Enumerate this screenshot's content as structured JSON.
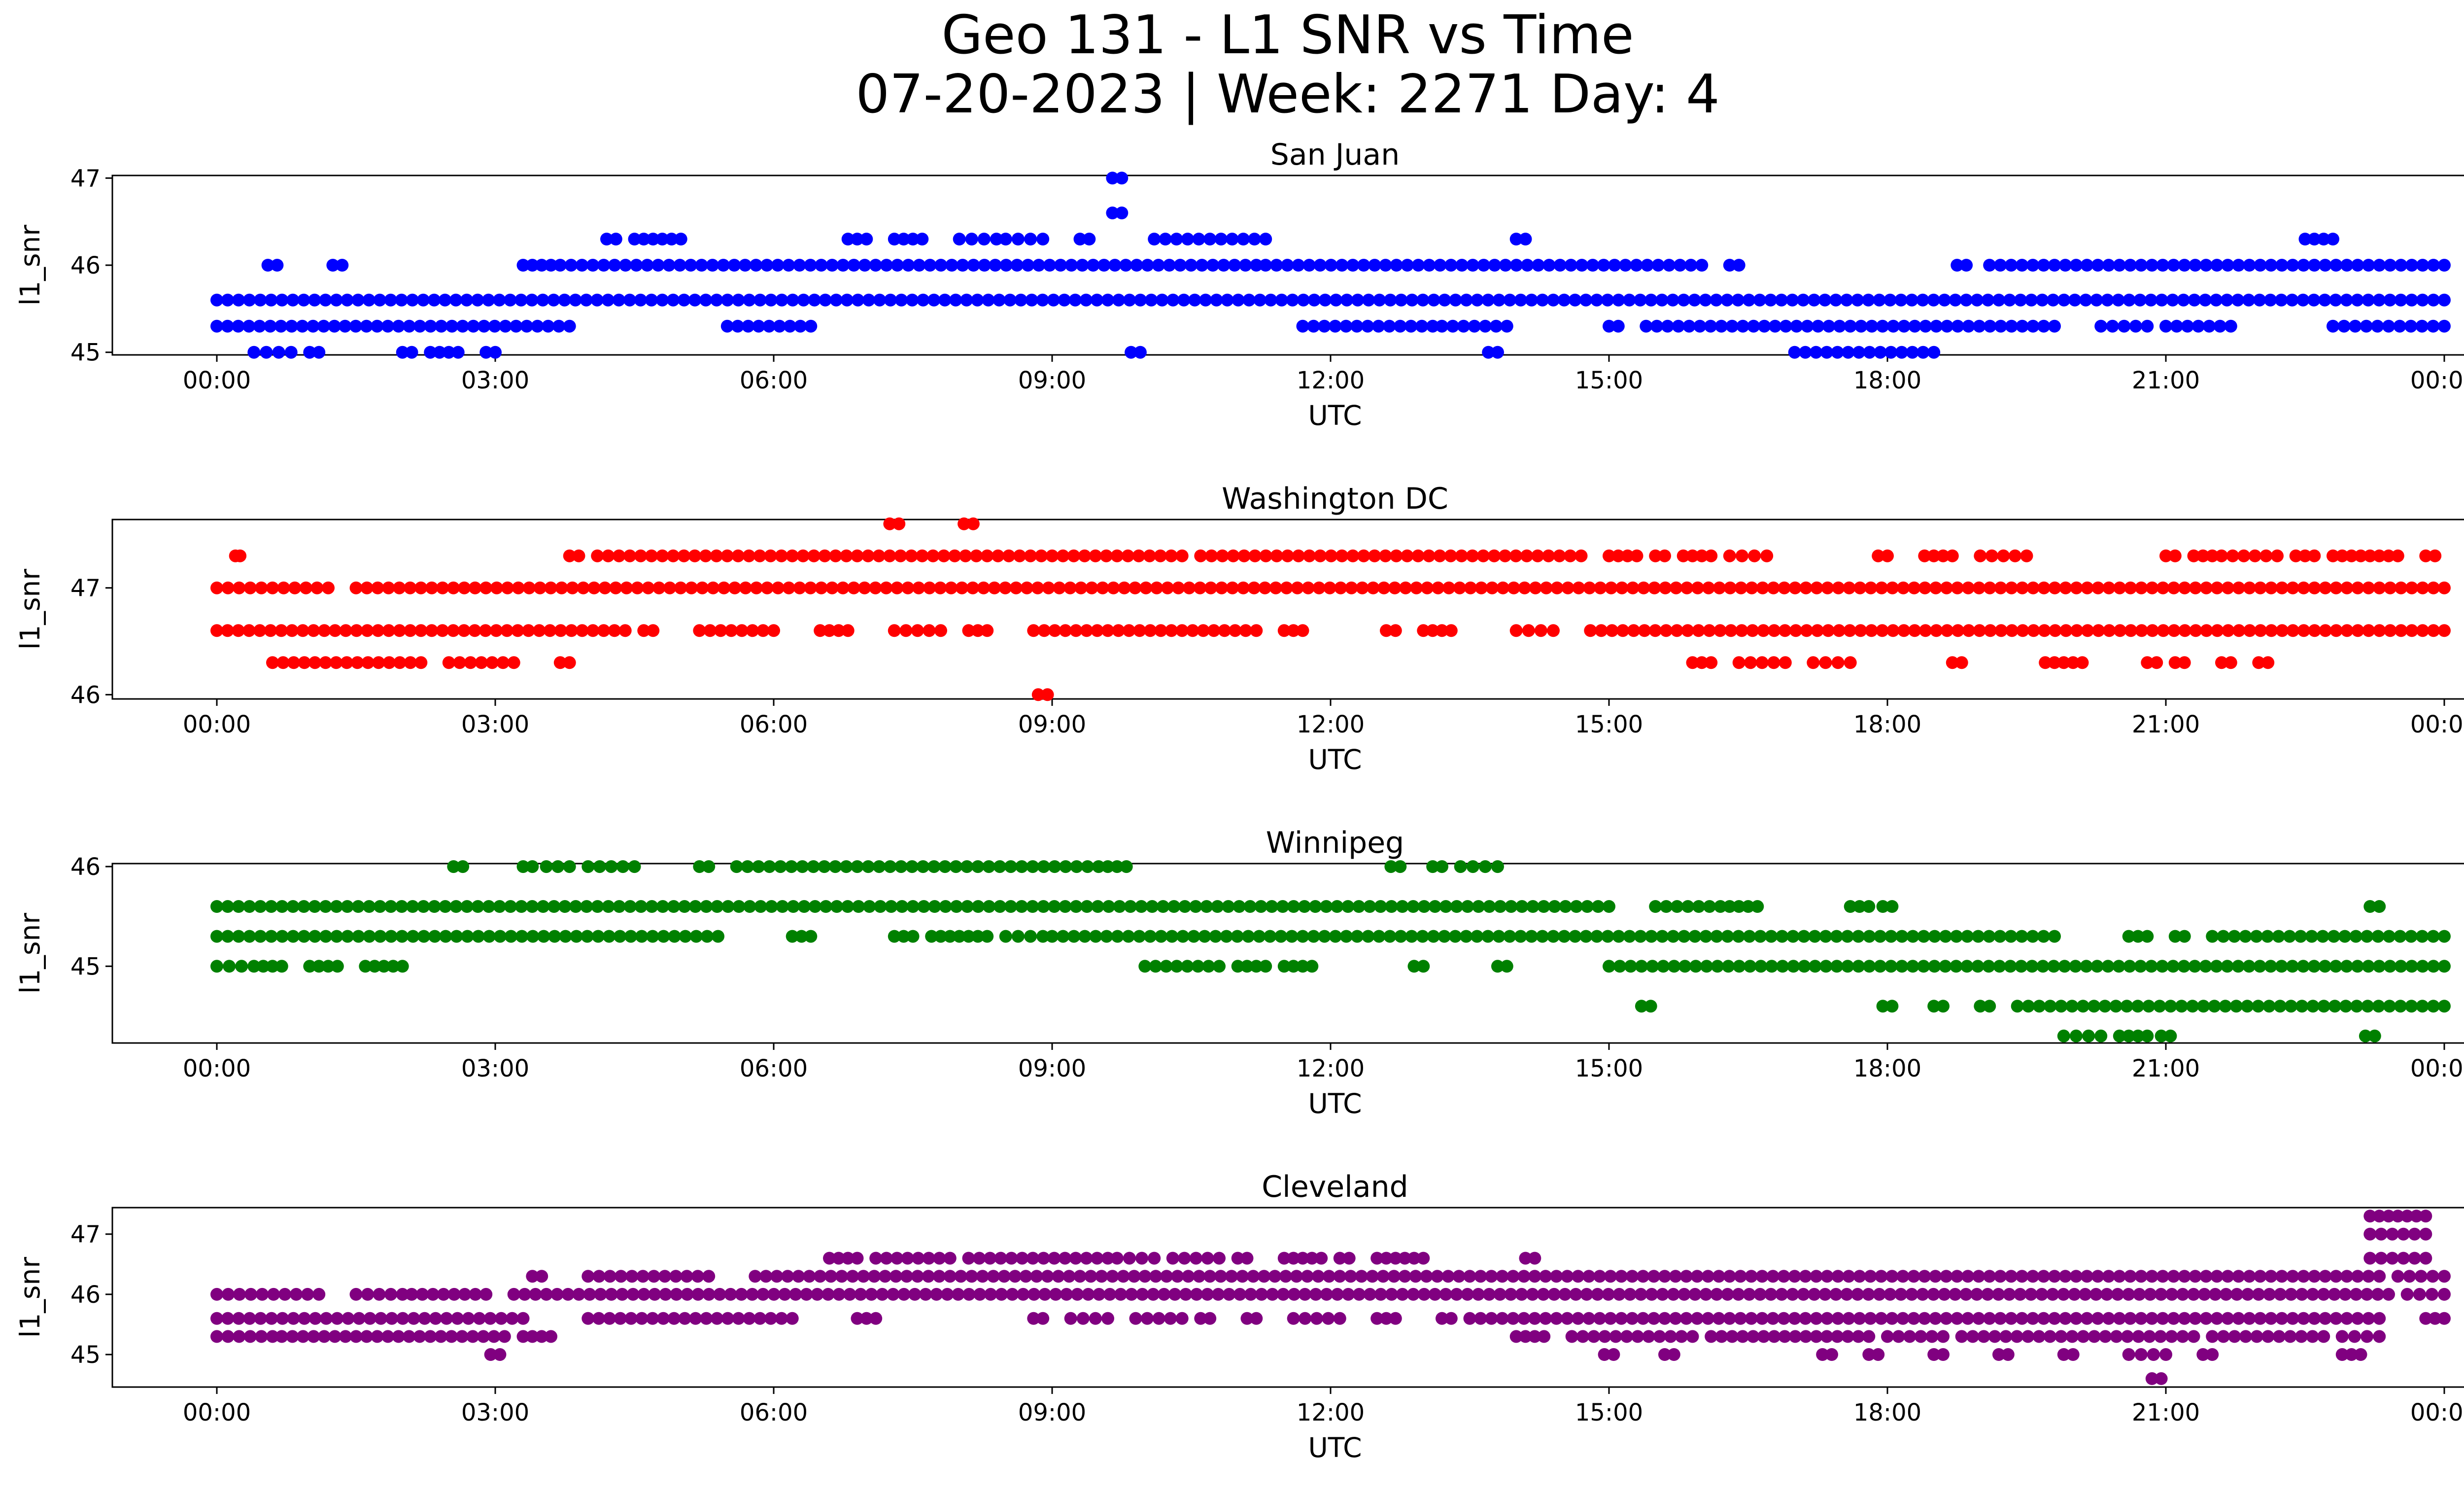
{
  "figure": {
    "title_line1": "Geo 131 - L1 SNR vs Time",
    "title_line2": "07-20-2023 | Week: 2271 Day: 4"
  },
  "chart_data": [
    {
      "type": "scatter",
      "title": "San Juan",
      "color": "#0000ff",
      "xlabel": "UTC",
      "ylabel": "l1_snr",
      "xlim": [
        "2023-07-20 00:00",
        "2023-07-21 00:00"
      ],
      "ylim": [
        44.97,
        47.03
      ],
      "xtick_labels": [
        "00:00",
        "03:00",
        "06:00",
        "09:00",
        "12:00",
        "15:00",
        "18:00",
        "21:00",
        "00:00"
      ],
      "ytick_values": [
        45,
        46,
        47
      ],
      "levels": [
        {
          "y": 45.6,
          "segments": [
            [
              0.0,
              24.0
            ]
          ]
        },
        {
          "y": 45.3,
          "segments": [
            [
              0.0,
              3.8
            ],
            [
              5.5,
              6.4
            ],
            [
              11.7,
              13.1
            ],
            [
              13.2,
              13.9
            ],
            [
              15.0,
              15.1
            ],
            [
              15.4,
              19.8
            ],
            [
              20.3,
              20.8
            ],
            [
              21.0,
              21.7
            ],
            [
              22.8,
              24.0
            ]
          ]
        },
        {
          "y": 46.0,
          "segments": [
            [
              0.55,
              0.65
            ],
            [
              1.25,
              1.35
            ],
            [
              3.3,
              3.6
            ],
            [
              3.7,
              11.2
            ],
            [
              11.3,
              16.0
            ],
            [
              16.3,
              16.4
            ],
            [
              18.75,
              18.85
            ],
            [
              19.1,
              24.0
            ]
          ]
        },
        {
          "y": 45.0,
          "segments": [
            [
              0.4,
              0.8
            ],
            [
              1.0,
              1.1
            ],
            [
              2.0,
              2.1
            ],
            [
              2.3,
              2.6
            ],
            [
              2.9,
              3.0
            ],
            [
              13.7,
              13.8
            ],
            [
              17.0,
              18.5
            ]
          ]
        },
        {
          "y": 46.3,
          "segments": [
            [
              4.2,
              4.3
            ],
            [
              4.5,
              4.8
            ],
            [
              4.9,
              5.0
            ],
            [
              6.8,
              7.0
            ],
            [
              7.3,
              7.6
            ],
            [
              8.0,
              8.4
            ],
            [
              8.5,
              8.9
            ],
            [
              9.3,
              9.4
            ],
            [
              10.1,
              11.3
            ],
            [
              14.0,
              14.1
            ],
            [
              22.5,
              22.8
            ]
          ]
        },
        {
          "y": 46.6,
          "segments": [
            [
              9.65,
              9.75
            ]
          ]
        },
        {
          "y": 47.0,
          "segments": [
            [
              9.65,
              9.75
            ]
          ]
        },
        {
          "y": 45.0,
          "segments": [
            [
              9.85,
              9.95
            ]
          ]
        }
      ]
    },
    {
      "type": "scatter",
      "title": "Washington DC",
      "color": "#ff0000",
      "xlabel": "UTC",
      "ylabel": "l1_snr",
      "xlim": [
        "2023-07-20 00:00",
        "2023-07-21 00:00"
      ],
      "ylim": [
        45.96,
        47.64
      ],
      "xtick_labels": [
        "00:00",
        "03:00",
        "06:00",
        "09:00",
        "12:00",
        "15:00",
        "18:00",
        "21:00",
        "00:00"
      ],
      "ytick_values": [
        46,
        47
      ],
      "levels": [
        {
          "y": 47.0,
          "segments": [
            [
              0.0,
              1.2
            ],
            [
              1.5,
              24.0
            ]
          ]
        },
        {
          "y": 46.6,
          "segments": [
            [
              0.0,
              4.4
            ],
            [
              4.6,
              4.7
            ],
            [
              5.2,
              6.0
            ],
            [
              6.5,
              6.8
            ],
            [
              7.3,
              7.8
            ],
            [
              8.1,
              8.3
            ],
            [
              8.8,
              11.2
            ],
            [
              11.5,
              11.7
            ],
            [
              12.6,
              12.7
            ],
            [
              13.0,
              13.3
            ],
            [
              14.0,
              14.4
            ],
            [
              14.8,
              24.0
            ]
          ]
        },
        {
          "y": 46.3,
          "segments": [
            [
              0.6,
              2.2
            ],
            [
              2.5,
              3.2
            ],
            [
              3.7,
              3.8
            ],
            [
              15.9,
              16.1
            ],
            [
              16.4,
              16.9
            ],
            [
              17.2,
              17.6
            ],
            [
              18.7,
              18.8
            ],
            [
              19.7,
              19.9
            ],
            [
              20.0,
              20.1
            ],
            [
              20.8,
              20.9
            ],
            [
              21.1,
              21.2
            ],
            [
              21.6,
              21.7
            ],
            [
              22.0,
              22.1
            ]
          ]
        },
        {
          "y": 47.3,
          "segments": [
            [
              0.2,
              0.25
            ],
            [
              3.8,
              3.9
            ],
            [
              4.1,
              10.4
            ],
            [
              10.6,
              14.7
            ],
            [
              15.0,
              15.3
            ],
            [
              15.5,
              15.6
            ],
            [
              15.8,
              16.1
            ],
            [
              16.3,
              16.7
            ],
            [
              17.9,
              18.0
            ],
            [
              18.4,
              18.7
            ],
            [
              19.0,
              19.5
            ],
            [
              21.0,
              21.1
            ],
            [
              21.3,
              21.5
            ],
            [
              21.6,
              22.2
            ],
            [
              22.4,
              22.6
            ],
            [
              22.8,
              23.1
            ],
            [
              23.2,
              23.5
            ],
            [
              23.8,
              23.9
            ]
          ]
        },
        {
          "y": 47.6,
          "segments": [
            [
              7.25,
              7.35
            ],
            [
              8.05,
              8.15
            ]
          ]
        },
        {
          "y": 46.0,
          "segments": [
            [
              8.85,
              8.95
            ]
          ]
        }
      ]
    },
    {
      "type": "scatter",
      "title": "Winnipeg",
      "color": "#008000",
      "xlabel": "UTC",
      "ylabel": "l1_snr",
      "xlim": [
        "2023-07-20 00:00",
        "2023-07-21 00:00"
      ],
      "ylim": [
        44.23,
        46.03
      ],
      "xtick_labels": [
        "00:00",
        "03:00",
        "06:00",
        "09:00",
        "12:00",
        "15:00",
        "18:00",
        "21:00",
        "00:00"
      ],
      "ytick_values": [
        45,
        46
      ],
      "levels": [
        {
          "y": 45.6,
          "segments": [
            [
              0.0,
              15.0
            ],
            [
              15.5,
              16.2
            ],
            [
              16.3,
              16.6
            ],
            [
              17.6,
              17.8
            ],
            [
              17.95,
              18.05
            ],
            [
              23.2,
              23.3
            ]
          ]
        },
        {
          "y": 45.3,
          "segments": [
            [
              0.0,
              5.4
            ],
            [
              6.2,
              6.4
            ],
            [
              7.3,
              7.5
            ],
            [
              7.7,
              7.9
            ],
            [
              8.0,
              8.3
            ],
            [
              8.5,
              8.9
            ],
            [
              9.0,
              19.8
            ],
            [
              20.6,
              20.8
            ],
            [
              21.1,
              21.2
            ],
            [
              21.5,
              24.0
            ]
          ]
        },
        {
          "y": 45.0,
          "segments": [
            [
              0.0,
              0.4
            ],
            [
              0.5,
              0.7
            ],
            [
              1.0,
              1.3
            ],
            [
              1.6,
              1.7
            ],
            [
              1.8,
              2.0
            ],
            [
              10.0,
              10.8
            ],
            [
              11.0,
              11.3
            ],
            [
              11.5,
              11.8
            ],
            [
              12.9,
              13.0
            ],
            [
              13.8,
              13.9
            ],
            [
              15.0,
              24.0
            ]
          ]
        },
        {
          "y": 46.0,
          "segments": [
            [
              2.55,
              2.65
            ],
            [
              3.3,
              3.4
            ],
            [
              3.55,
              3.8
            ],
            [
              4.0,
              4.5
            ],
            [
              5.2,
              5.3
            ],
            [
              5.6,
              9.5
            ],
            [
              9.6,
              9.8
            ],
            [
              12.65,
              12.75
            ],
            [
              13.1,
              13.2
            ],
            [
              13.4,
              13.8
            ]
          ]
        },
        {
          "y": 44.6,
          "segments": [
            [
              15.35,
              15.45
            ],
            [
              17.95,
              18.05
            ],
            [
              18.5,
              18.6
            ],
            [
              19.0,
              19.1
            ],
            [
              19.4,
              24.0
            ]
          ]
        },
        {
          "y": 44.3,
          "segments": [
            [
              19.9,
              20.3
            ],
            [
              20.5,
              20.8
            ],
            [
              20.95,
              21.05
            ],
            [
              23.15,
              23.25
            ]
          ]
        }
      ]
    },
    {
      "type": "scatter",
      "title": "Cleveland",
      "color": "#800080",
      "xlabel": "UTC",
      "ylabel": "l1_snr",
      "xlim": [
        "2023-07-20 00:00",
        "2023-07-21 00:00"
      ],
      "ylim": [
        44.46,
        47.44
      ],
      "xtick_labels": [
        "00:00",
        "03:00",
        "06:00",
        "09:00",
        "12:00",
        "15:00",
        "18:00",
        "21:00",
        "00:00"
      ],
      "ytick_values": [
        45,
        46,
        47
      ],
      "levels": [
        {
          "y": 45.6,
          "segments": [
            [
              0.0,
              3.3
            ],
            [
              4.0,
              6.2
            ],
            [
              6.9,
              7.1
            ],
            [
              8.8,
              8.9
            ],
            [
              9.2,
              9.6
            ],
            [
              9.9,
              10.4
            ],
            [
              10.6,
              10.7
            ],
            [
              11.1,
              11.2
            ],
            [
              11.6,
              12.1
            ],
            [
              12.5,
              12.7
            ],
            [
              13.2,
              13.3
            ],
            [
              13.5,
              23.3
            ],
            [
              23.8,
              24.0
            ]
          ]
        },
        {
          "y": 45.3,
          "segments": [
            [
              0.0,
              0.6
            ],
            [
              0.7,
              3.1
            ],
            [
              3.3,
              3.6
            ],
            [
              14.0,
              14.3
            ],
            [
              14.6,
              15.9
            ],
            [
              16.1,
              17.8
            ],
            [
              18.0,
              18.6
            ],
            [
              18.8,
              21.3
            ],
            [
              21.5,
              22.7
            ],
            [
              22.9,
              23.3
            ]
          ]
        },
        {
          "y": 46.0,
          "segments": [
            [
              0.0,
              1.1
            ],
            [
              1.5,
              2.0
            ],
            [
              2.1,
              2.9
            ],
            [
              3.2,
              23.4
            ],
            [
              23.6,
              24.0
            ]
          ]
        },
        {
          "y": 46.3,
          "segments": [
            [
              3.4,
              3.5
            ],
            [
              4.0,
              5.3
            ],
            [
              5.8,
              23.3
            ],
            [
              23.5,
              24.0
            ]
          ]
        },
        {
          "y": 45.0,
          "segments": [
            [
              2.95,
              3.05
            ],
            [
              14.95,
              15.05
            ],
            [
              15.6,
              15.7
            ],
            [
              17.3,
              17.4
            ],
            [
              17.8,
              17.9
            ],
            [
              18.5,
              18.6
            ],
            [
              19.2,
              19.3
            ],
            [
              19.9,
              20.0
            ],
            [
              20.6,
              21.0
            ],
            [
              21.4,
              21.5
            ],
            [
              22.9,
              23.1
            ]
          ]
        },
        {
          "y": 46.6,
          "segments": [
            [
              6.6,
              6.9
            ],
            [
              7.1,
              7.9
            ],
            [
              8.1,
              9.6
            ],
            [
              9.7,
              10.1
            ],
            [
              10.3,
              10.8
            ],
            [
              11.0,
              11.1
            ],
            [
              11.5,
              11.6
            ],
            [
              11.7,
              11.9
            ],
            [
              12.1,
              12.2
            ],
            [
              12.5,
              12.7
            ],
            [
              12.8,
              13.0
            ],
            [
              14.1,
              14.2
            ],
            [
              23.2,
              23.8
            ]
          ]
        },
        {
          "y": 47.0,
          "segments": [
            [
              23.2,
              23.8
            ]
          ]
        },
        {
          "y": 47.3,
          "segments": [
            [
              23.2,
              23.4
            ],
            [
              23.5,
              23.8
            ]
          ]
        },
        {
          "y": 44.6,
          "segments": [
            [
              20.85,
              20.95
            ]
          ]
        }
      ]
    }
  ]
}
